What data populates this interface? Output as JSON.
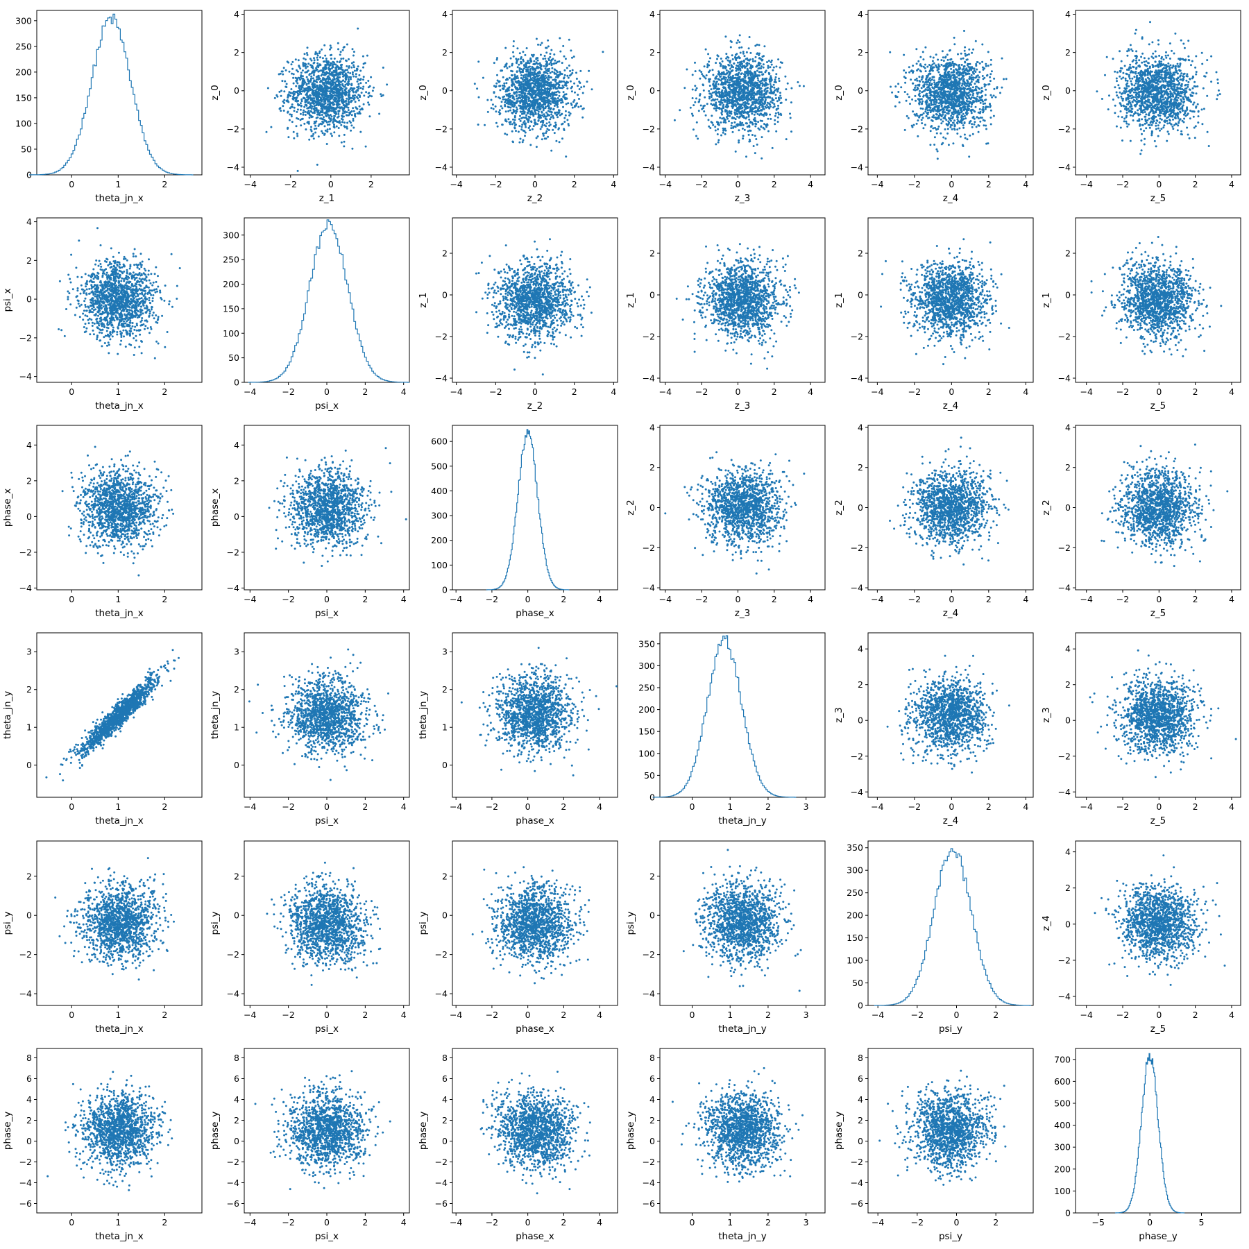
{
  "colors": {
    "series": "#1f77b4",
    "axes": "#000000",
    "background": "#ffffff"
  },
  "chart_data": {
    "type": "corner-plot",
    "grid": "6x6 (diagonal histograms, off-diagonal scatter)",
    "grid_lines": false,
    "variables": [
      "theta_jn_x",
      "psi_x",
      "phase_x",
      "theta_jn_y",
      "psi_y",
      "phase_y",
      "z_0",
      "z_1",
      "z_2",
      "z_3",
      "z_4",
      "z_5"
    ],
    "histograms": [
      {
        "variable": "theta_jn_x",
        "xlim": [
          -0.75,
          2.8
        ],
        "ylim": [
          0,
          320
        ],
        "xticks": [
          0,
          1,
          2
        ],
        "yticks": [
          0,
          50,
          100,
          150,
          200,
          250,
          300
        ],
        "mean": 0.85,
        "sd": 0.42,
        "peak": 304
      },
      {
        "variable": "psi_x",
        "xlim": [
          -4.3,
          4.3
        ],
        "ylim": [
          0,
          335
        ],
        "xticks": [
          -4,
          -2,
          0,
          2,
          4
        ],
        "yticks": [
          0,
          50,
          100,
          150,
          200,
          250,
          300
        ],
        "mean": 0.1,
        "sd": 1.0,
        "peak": 320
      },
      {
        "variable": "phase_x",
        "xlim": [
          -4.2,
          5.0
        ],
        "ylim": [
          0,
          665
        ],
        "xticks": [
          -4,
          -2,
          0,
          2,
          4
        ],
        "yticks": [
          0,
          100,
          200,
          300,
          400,
          500,
          600
        ],
        "mean": 0.0,
        "sd": 0.55,
        "peak": 630
      },
      {
        "variable": "theta_jn_y",
        "xlim": [
          -0.85,
          3.5
        ],
        "ylim": [
          0,
          375
        ],
        "xticks": [
          0,
          1,
          2,
          3
        ],
        "yticks": [
          0,
          50,
          100,
          150,
          200,
          250,
          300,
          350
        ],
        "mean": 0.85,
        "sd": 0.45,
        "peak": 358
      },
      {
        "variable": "psi_y",
        "xlim": [
          -4.5,
          3.9
        ],
        "ylim": [
          0,
          365
        ],
        "xticks": [
          -4,
          -2,
          0,
          2
        ],
        "yticks": [
          0,
          50,
          100,
          150,
          200,
          250,
          300,
          350
        ],
        "mean": -0.2,
        "sd": 0.95,
        "peak": 348
      },
      {
        "variable": "phase_y",
        "xlim": [
          -7.2,
          8.8
        ],
        "ylim": [
          0,
          750
        ],
        "xticks": [
          -5,
          0,
          5
        ],
        "yticks": [
          0,
          100,
          200,
          300,
          400,
          500,
          600,
          700
        ],
        "mean": 0.0,
        "sd": 0.8,
        "peak": 718
      }
    ],
    "scatter_panels": [
      {
        "row": 0,
        "col": 1,
        "x": "z_1",
        "y": "z_0",
        "xlim": [
          -4.3,
          3.9
        ],
        "ylim": [
          -4.4,
          4.2
        ],
        "xticks": [
          -4,
          -2,
          0,
          2
        ],
        "yticks": [
          -4,
          -2,
          0,
          2,
          4
        ],
        "correlation": 0.0
      },
      {
        "row": 0,
        "col": 2,
        "x": "z_2",
        "y": "z_0",
        "xlim": [
          -4.2,
          4.2
        ],
        "ylim": [
          -4.4,
          4.2
        ],
        "xticks": [
          -4,
          -2,
          0,
          2,
          4
        ],
        "yticks": [
          -4,
          -2,
          0,
          2,
          4
        ],
        "correlation": 0.0
      },
      {
        "row": 0,
        "col": 3,
        "x": "z_3",
        "y": "z_0",
        "xlim": [
          -4.3,
          4.8
        ],
        "ylim": [
          -4.4,
          4.2
        ],
        "xticks": [
          -4,
          -2,
          0,
          2,
          4
        ],
        "yticks": [
          -4,
          -2,
          0,
          2,
          4
        ],
        "correlation": 0.0
      },
      {
        "row": 0,
        "col": 4,
        "x": "z_4",
        "y": "z_0",
        "xlim": [
          -4.5,
          4.4
        ],
        "ylim": [
          -4.4,
          4.2
        ],
        "xticks": [
          -4,
          -2,
          0,
          2,
          4
        ],
        "yticks": [
          -4,
          -2,
          0,
          2,
          4
        ],
        "correlation": 0.0
      },
      {
        "row": 0,
        "col": 5,
        "x": "z_5",
        "y": "z_0",
        "xlim": [
          -4.6,
          4.5
        ],
        "ylim": [
          -4.4,
          4.2
        ],
        "xticks": [
          -4,
          -2,
          0,
          2,
          4
        ],
        "yticks": [
          -4,
          -2,
          0,
          2,
          4
        ],
        "correlation": 0.0
      },
      {
        "row": 1,
        "col": 0,
        "x": "theta_jn_x",
        "y": "psi_x",
        "xlim": [
          -0.75,
          2.8
        ],
        "ylim": [
          -4.3,
          4.2
        ],
        "xticks": [
          0,
          1,
          2
        ],
        "yticks": [
          -4,
          -2,
          0,
          2,
          4
        ],
        "correlation": 0.0
      },
      {
        "row": 1,
        "col": 2,
        "x": "z_2",
        "y": "z_1",
        "xlim": [
          -4.2,
          4.2
        ],
        "ylim": [
          -4.2,
          3.7
        ],
        "xticks": [
          -4,
          -2,
          0,
          2,
          4
        ],
        "yticks": [
          -4,
          -2,
          0,
          2
        ],
        "correlation": 0.0
      },
      {
        "row": 1,
        "col": 3,
        "x": "z_3",
        "y": "z_1",
        "xlim": [
          -4.3,
          4.8
        ],
        "ylim": [
          -4.2,
          3.7
        ],
        "xticks": [
          -4,
          -2,
          0,
          2,
          4
        ],
        "yticks": [
          -4,
          -2,
          0,
          2
        ],
        "correlation": 0.0
      },
      {
        "row": 1,
        "col": 4,
        "x": "z_4",
        "y": "z_1",
        "xlim": [
          -4.5,
          4.4
        ],
        "ylim": [
          -4.2,
          3.7
        ],
        "xticks": [
          -4,
          -2,
          0,
          2,
          4
        ],
        "yticks": [
          -4,
          -2,
          0,
          2
        ],
        "correlation": 0.0
      },
      {
        "row": 1,
        "col": 5,
        "x": "z_5",
        "y": "z_1",
        "xlim": [
          -4.6,
          4.5
        ],
        "ylim": [
          -4.2,
          3.7
        ],
        "xticks": [
          -4,
          -2,
          0,
          2,
          4
        ],
        "yticks": [
          -4,
          -2,
          0,
          2
        ],
        "correlation": 0.0
      },
      {
        "row": 2,
        "col": 0,
        "x": "theta_jn_x",
        "y": "phase_x",
        "xlim": [
          -0.75,
          2.8
        ],
        "ylim": [
          -4.1,
          5.1
        ],
        "xticks": [
          0,
          1,
          2
        ],
        "yticks": [
          -4,
          -2,
          0,
          2,
          4
        ],
        "correlation": 0.0
      },
      {
        "row": 2,
        "col": 1,
        "x": "psi_x",
        "y": "phase_x",
        "xlim": [
          -4.3,
          4.3
        ],
        "ylim": [
          -4.1,
          5.1
        ],
        "xticks": [
          -4,
          -2,
          0,
          2,
          4
        ],
        "yticks": [
          -4,
          -2,
          0,
          2,
          4
        ],
        "correlation": 0.0
      },
      {
        "row": 2,
        "col": 3,
        "x": "z_3",
        "y": "z_2",
        "xlim": [
          -4.3,
          4.8
        ],
        "ylim": [
          -4.1,
          4.1
        ],
        "xticks": [
          -4,
          -2,
          0,
          2,
          4
        ],
        "yticks": [
          -4,
          -2,
          0,
          2,
          4
        ],
        "correlation": 0.0
      },
      {
        "row": 2,
        "col": 4,
        "x": "z_4",
        "y": "z_2",
        "xlim": [
          -4.5,
          4.4
        ],
        "ylim": [
          -4.1,
          4.1
        ],
        "xticks": [
          -4,
          -2,
          0,
          2,
          4
        ],
        "yticks": [
          -4,
          -2,
          0,
          2,
          4
        ],
        "correlation": 0.0
      },
      {
        "row": 2,
        "col": 5,
        "x": "z_5",
        "y": "z_2",
        "xlim": [
          -4.6,
          4.5
        ],
        "ylim": [
          -4.1,
          4.1
        ],
        "xticks": [
          -4,
          -2,
          0,
          2,
          4
        ],
        "yticks": [
          -4,
          -2,
          0,
          2,
          4
        ],
        "correlation": 0.0
      },
      {
        "row": 3,
        "col": 0,
        "x": "theta_jn_x",
        "y": "theta_jn_y",
        "xlim": [
          -0.75,
          2.8
        ],
        "ylim": [
          -0.85,
          3.5
        ],
        "xticks": [
          0,
          1,
          2
        ],
        "yticks": [
          0,
          1,
          2,
          3
        ],
        "correlation": 0.95
      },
      {
        "row": 3,
        "col": 1,
        "x": "psi_x",
        "y": "theta_jn_y",
        "xlim": [
          -4.3,
          4.3
        ],
        "ylim": [
          -0.85,
          3.5
        ],
        "xticks": [
          -4,
          -2,
          0,
          2,
          4
        ],
        "yticks": [
          0,
          1,
          2,
          3
        ],
        "correlation": 0.0
      },
      {
        "row": 3,
        "col": 2,
        "x": "phase_x",
        "y": "theta_jn_y",
        "xlim": [
          -4.2,
          5.0
        ],
        "ylim": [
          -0.85,
          3.5
        ],
        "xticks": [
          -4,
          -2,
          0,
          2,
          4
        ],
        "yticks": [
          0,
          1,
          2,
          3
        ],
        "correlation": 0.0
      },
      {
        "row": 3,
        "col": 4,
        "x": "z_4",
        "y": "z_3",
        "xlim": [
          -4.5,
          4.4
        ],
        "ylim": [
          -4.3,
          4.9
        ],
        "xticks": [
          -4,
          -2,
          0,
          2,
          4
        ],
        "yticks": [
          -4,
          -2,
          0,
          2,
          4
        ],
        "correlation": 0.0
      },
      {
        "row": 3,
        "col": 5,
        "x": "z_5",
        "y": "z_3",
        "xlim": [
          -4.6,
          4.5
        ],
        "ylim": [
          -4.3,
          4.9
        ],
        "xticks": [
          -4,
          -2,
          0,
          2,
          4
        ],
        "yticks": [
          -4,
          -2,
          0,
          2,
          4
        ],
        "correlation": 0.0
      },
      {
        "row": 4,
        "col": 0,
        "x": "theta_jn_x",
        "y": "psi_y",
        "xlim": [
          -0.75,
          2.8
        ],
        "ylim": [
          -4.6,
          3.8
        ],
        "xticks": [
          0,
          1,
          2
        ],
        "yticks": [
          -4,
          -2,
          0,
          2
        ],
        "correlation": 0.0
      },
      {
        "row": 4,
        "col": 1,
        "x": "psi_x",
        "y": "psi_y",
        "xlim": [
          -4.3,
          4.3
        ],
        "ylim": [
          -4.6,
          3.8
        ],
        "xticks": [
          -4,
          -2,
          0,
          2,
          4
        ],
        "yticks": [
          -4,
          -2,
          0,
          2
        ],
        "correlation": -0.1
      },
      {
        "row": 4,
        "col": 2,
        "x": "phase_x",
        "y": "psi_y",
        "xlim": [
          -4.2,
          5.0
        ],
        "ylim": [
          -4.6,
          3.8
        ],
        "xticks": [
          -4,
          -2,
          0,
          2,
          4
        ],
        "yticks": [
          -4,
          -2,
          0,
          2
        ],
        "correlation": 0.0
      },
      {
        "row": 4,
        "col": 3,
        "x": "theta_jn_y",
        "y": "psi_y",
        "xlim": [
          -0.85,
          3.5
        ],
        "ylim": [
          -4.6,
          3.8
        ],
        "xticks": [
          0,
          1,
          2,
          3
        ],
        "yticks": [
          -4,
          -2,
          0,
          2
        ],
        "correlation": 0.0
      },
      {
        "row": 4,
        "col": 5,
        "x": "z_5",
        "y": "z_4",
        "xlim": [
          -4.6,
          4.5
        ],
        "ylim": [
          -4.5,
          4.6
        ],
        "xticks": [
          -4,
          -2,
          0,
          2,
          4
        ],
        "yticks": [
          -4,
          -2,
          0,
          2,
          4
        ],
        "correlation": 0.0
      },
      {
        "row": 5,
        "col": 0,
        "x": "theta_jn_x",
        "y": "phase_y",
        "xlim": [
          -0.75,
          2.8
        ],
        "ylim": [
          -6.9,
          8.9
        ],
        "xticks": [
          0,
          1,
          2
        ],
        "yticks": [
          -6,
          -4,
          -2,
          0,
          2,
          4,
          6,
          8
        ],
        "correlation": 0.0
      },
      {
        "row": 5,
        "col": 1,
        "x": "psi_x",
        "y": "phase_y",
        "xlim": [
          -4.3,
          4.3
        ],
        "ylim": [
          -6.9,
          8.9
        ],
        "xticks": [
          -4,
          -2,
          0,
          2,
          4
        ],
        "yticks": [
          -6,
          -4,
          -2,
          0,
          2,
          4,
          6,
          8
        ],
        "correlation": 0.0
      },
      {
        "row": 5,
        "col": 2,
        "x": "phase_x",
        "y": "phase_y",
        "xlim": [
          -4.2,
          5.0
        ],
        "ylim": [
          -6.9,
          8.9
        ],
        "xticks": [
          -4,
          -2,
          0,
          2,
          4
        ],
        "yticks": [
          -6,
          -4,
          -2,
          0,
          2,
          4,
          6,
          8
        ],
        "correlation": -0.1
      },
      {
        "row": 5,
        "col": 3,
        "x": "theta_jn_y",
        "y": "phase_y",
        "xlim": [
          -0.85,
          3.5
        ],
        "ylim": [
          -6.9,
          8.9
        ],
        "xticks": [
          0,
          1,
          2,
          3
        ],
        "yticks": [
          -6,
          -4,
          -2,
          0,
          2,
          4,
          6,
          8
        ],
        "correlation": 0.0
      },
      {
        "row": 5,
        "col": 4,
        "x": "psi_y",
        "y": "phase_y",
        "xlim": [
          -4.5,
          3.9
        ],
        "ylim": [
          -6.9,
          8.9
        ],
        "xticks": [
          -4,
          -2,
          0,
          2
        ],
        "yticks": [
          -6,
          -4,
          -2,
          0,
          2,
          4,
          6,
          8
        ],
        "correlation": 0.0
      }
    ]
  }
}
